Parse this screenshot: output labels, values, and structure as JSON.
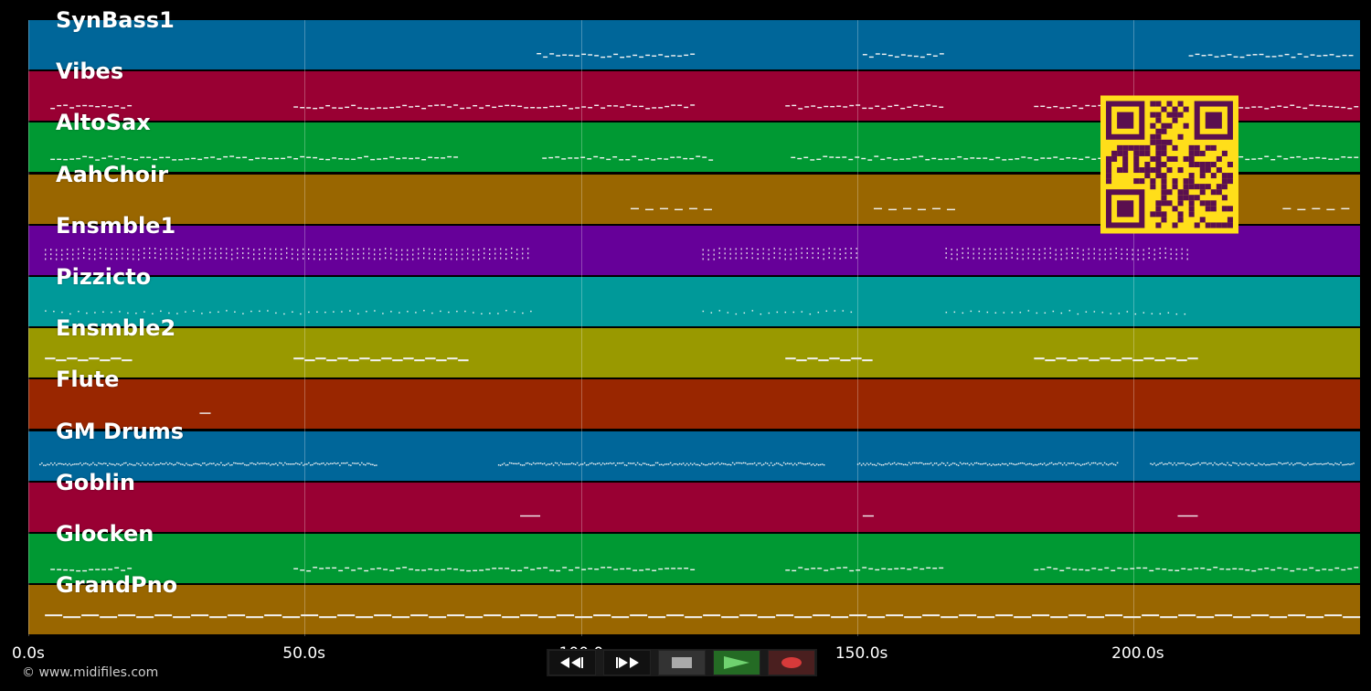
{
  "tracks": [
    {
      "name": "SynBass1",
      "color": "#006699",
      "pattern": "dash"
    },
    {
      "name": "Vibes",
      "color": "#990033",
      "pattern": "squiggle"
    },
    {
      "name": "AltoSax",
      "color": "#009933",
      "pattern": "dash"
    },
    {
      "name": "AahChoir",
      "color": "#996600",
      "pattern": "wave"
    },
    {
      "name": "Ensmble1",
      "color": "#660099",
      "pattern": "dots"
    },
    {
      "name": "Pizzicto",
      "color": "#009999",
      "pattern": "dot"
    },
    {
      "name": "Ensmble2",
      "color": "#999900",
      "pattern": "bars"
    },
    {
      "name": "Flute",
      "color": "#992600",
      "pattern": "single"
    },
    {
      "name": "GM Drums",
      "color": "#006699",
      "pattern": "dense"
    },
    {
      "name": "Goblin",
      "color": "#990033",
      "pattern": "single"
    },
    {
      "name": "Glocken",
      "color": "#009933",
      "pattern": "squiggle"
    },
    {
      "name": "GrandPno",
      "color": "#996600",
      "pattern": "long"
    }
  ],
  "timeline": {
    "ticks": [
      "0.0s",
      "50.0s",
      "100.0s",
      "150.0s",
      "200.0s"
    ],
    "tick_seconds": [
      0,
      50,
      100,
      150,
      200
    ],
    "duration_seconds": 241
  },
  "note_segments": {
    "SynBass1": [
      [
        92,
        120
      ],
      [
        151,
        165
      ],
      [
        210,
        240
      ]
    ],
    "Vibes": [
      [
        4,
        18
      ],
      [
        48,
        120
      ],
      [
        137,
        165
      ],
      [
        182,
        240
      ]
    ],
    "AltoSax": [
      [
        4,
        78
      ],
      [
        93,
        124
      ],
      [
        138,
        240
      ]
    ],
    "AahChoir": [
      [
        109,
        123
      ],
      [
        153,
        167
      ],
      [
        227,
        240
      ]
    ],
    "Ensmble1": [
      [
        3,
        91
      ],
      [
        122,
        150
      ],
      [
        166,
        210
      ]
    ],
    "Pizzicto": [
      [
        3,
        91
      ],
      [
        122,
        150
      ],
      [
        166,
        210
      ]
    ],
    "Ensmble2": [
      [
        3,
        18
      ],
      [
        48,
        78
      ],
      [
        137,
        152
      ],
      [
        182,
        211
      ]
    ],
    "Flute": [
      [
        31,
        33
      ]
    ],
    "GM Drums": [
      [
        2,
        63
      ],
      [
        85,
        144
      ],
      [
        150,
        197
      ],
      [
        203,
        240
      ]
    ],
    "Goblin": [
      [
        89,
        93
      ],
      [
        151,
        153
      ],
      [
        208,
        212
      ]
    ],
    "Glocken": [
      [
        4,
        18
      ],
      [
        48,
        120
      ],
      [
        137,
        165
      ],
      [
        182,
        240
      ]
    ],
    "GrandPno": [
      [
        3,
        240
      ]
    ]
  },
  "copyright": "© www.midifiles.com",
  "controls": [
    {
      "name": "rewind",
      "icon": "rewind-icon",
      "bg": "#111111"
    },
    {
      "name": "fast-forward",
      "icon": "fast-forward-icon",
      "bg": "#111111"
    },
    {
      "name": "stop",
      "icon": "stop-icon",
      "bg": "#333333"
    },
    {
      "name": "play",
      "icon": "play-icon",
      "bg": "#226622"
    },
    {
      "name": "record",
      "icon": "record-icon",
      "bg": "#442222"
    }
  ],
  "qr_code": {
    "fg": "#5a0f4f",
    "bg": "#ffde1a"
  }
}
